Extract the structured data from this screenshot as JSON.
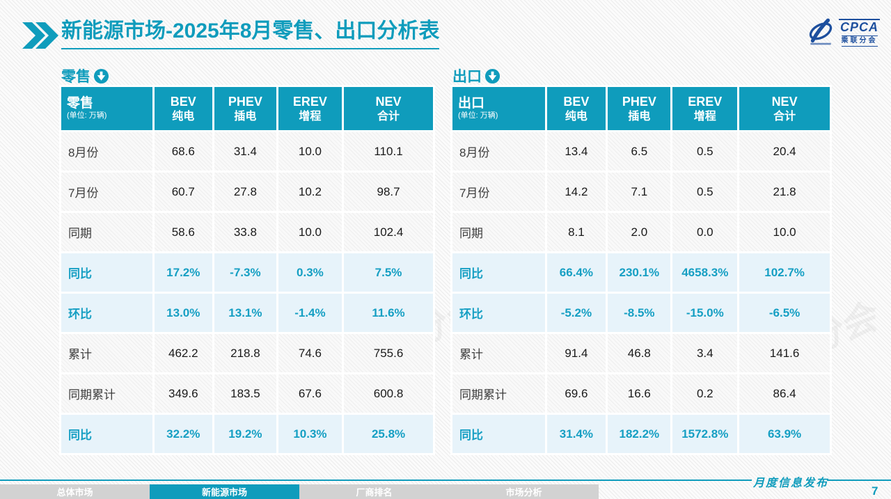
{
  "colors": {
    "teal": "#0f9cbc",
    "accent_text": "#169fc3",
    "highlight_row_bg": "#e7f3fa",
    "logo_blue": "#1d4f9e",
    "inactive_tab_bg": "#d2d2d2"
  },
  "header": {
    "title_bold": "新能源市场",
    "title_rest": "-2025年8月零售、出口分析表",
    "logo_text": "CPCA",
    "logo_subtext": "乘联分会"
  },
  "watermark": "CPCA 乘联分会",
  "tables": [
    {
      "key": "retail",
      "section_label": "零售",
      "title": "零售",
      "unit": "(单位: 万辆)",
      "columns": [
        {
          "line1": "BEV",
          "line2": "纯电"
        },
        {
          "line1": "PHEV",
          "line2": "插电"
        },
        {
          "line1": "EREV",
          "line2": "增程"
        },
        {
          "line1": "NEV",
          "line2": "合计"
        }
      ],
      "rows": [
        {
          "label": "8月份",
          "values": [
            "68.6",
            "31.4",
            "10.0",
            "110.1"
          ],
          "accent": false
        },
        {
          "label": "7月份",
          "values": [
            "60.7",
            "27.8",
            "10.2",
            "98.7"
          ],
          "accent": false
        },
        {
          "label": "同期",
          "values": [
            "58.6",
            "33.8",
            "10.0",
            "102.4"
          ],
          "accent": false
        },
        {
          "label": "同比",
          "values": [
            "17.2%",
            "-7.3%",
            "0.3%",
            "7.5%"
          ],
          "accent": true
        },
        {
          "label": "环比",
          "values": [
            "13.0%",
            "13.1%",
            "-1.4%",
            "11.6%"
          ],
          "accent": true
        },
        {
          "label": "累计",
          "values": [
            "462.2",
            "218.8",
            "74.6",
            "755.6"
          ],
          "accent": false
        },
        {
          "label": "同期累计",
          "values": [
            "349.6",
            "183.5",
            "67.6",
            "600.8"
          ],
          "accent": false
        },
        {
          "label": "同比",
          "values": [
            "32.2%",
            "19.2%",
            "10.3%",
            "25.8%"
          ],
          "accent": true
        }
      ]
    },
    {
      "key": "export",
      "section_label": "出口",
      "title": "出口",
      "unit": "(单位: 万辆)",
      "columns": [
        {
          "line1": "BEV",
          "line2": "纯电"
        },
        {
          "line1": "PHEV",
          "line2": "插电"
        },
        {
          "line1": "EREV",
          "line2": "增程"
        },
        {
          "line1": "NEV",
          "line2": "合计"
        }
      ],
      "rows": [
        {
          "label": "8月份",
          "values": [
            "13.4",
            "6.5",
            "0.5",
            "20.4"
          ],
          "accent": false
        },
        {
          "label": "7月份",
          "values": [
            "14.2",
            "7.1",
            "0.5",
            "21.8"
          ],
          "accent": false
        },
        {
          "label": "同期",
          "values": [
            "8.1",
            "2.0",
            "0.0",
            "10.0"
          ],
          "accent": false
        },
        {
          "label": "同比",
          "values": [
            "66.4%",
            "230.1%",
            "4658.3%",
            "102.7%"
          ],
          "accent": true
        },
        {
          "label": "环比",
          "values": [
            "-5.2%",
            "-8.5%",
            "-15.0%",
            "-6.5%"
          ],
          "accent": true
        },
        {
          "label": "累计",
          "values": [
            "91.4",
            "46.8",
            "3.4",
            "141.6"
          ],
          "accent": false
        },
        {
          "label": "同期累计",
          "values": [
            "69.6",
            "16.6",
            "0.2",
            "86.4"
          ],
          "accent": false
        },
        {
          "label": "同比",
          "values": [
            "31.4%",
            "182.2%",
            "1572.8%",
            "63.9%"
          ],
          "accent": true
        }
      ]
    }
  ],
  "footer": {
    "tabs": [
      {
        "label": "总体市场",
        "active": false
      },
      {
        "label": "新能源市场",
        "active": true
      },
      {
        "label": "厂商排名",
        "active": false
      },
      {
        "label": "市场分析",
        "active": false
      }
    ],
    "release_label": "月度信息发布",
    "page_number": "7"
  }
}
